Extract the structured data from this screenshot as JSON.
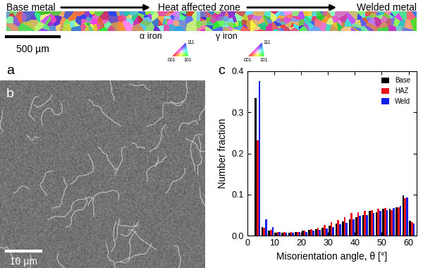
{
  "chart_data": {
    "type": "bar",
    "x_label": "Misorientation angle, θ [°]",
    "y_label": "Number fraction",
    "x": [
      3.75,
      6.25,
      8.75,
      11.25,
      13.75,
      16.25,
      18.75,
      21.25,
      23.75,
      26.25,
      28.75,
      31.25,
      33.75,
      36.25,
      38.75,
      41.25,
      43.75,
      46.25,
      48.75,
      51.25,
      53.75,
      56.25,
      58.75,
      61.25
    ],
    "series": [
      {
        "name": "Base",
        "color": "#000000",
        "values": [
          0.335,
          0.022,
          0.012,
          0.008,
          0.008,
          0.008,
          0.01,
          0.012,
          0.014,
          0.016,
          0.02,
          0.025,
          0.03,
          0.035,
          0.04,
          0.045,
          0.05,
          0.06,
          0.058,
          0.065,
          0.065,
          0.07,
          0.098,
          0.036
        ]
      },
      {
        "name": "HAZ",
        "color": "#e8141b",
        "values": [
          0.232,
          0.02,
          0.015,
          0.01,
          0.01,
          0.01,
          0.01,
          0.012,
          0.016,
          0.02,
          0.026,
          0.033,
          0.038,
          0.045,
          0.055,
          0.058,
          0.06,
          0.062,
          0.065,
          0.068,
          0.062,
          0.07,
          0.092,
          0.033
        ]
      },
      {
        "name": "Weld",
        "color": "#1020e8",
        "values": [
          0.375,
          0.04,
          0.022,
          0.01,
          0.008,
          0.008,
          0.009,
          0.01,
          0.012,
          0.015,
          0.018,
          0.022,
          0.028,
          0.032,
          0.04,
          0.048,
          0.05,
          0.055,
          0.06,
          0.062,
          0.068,
          0.072,
          0.093,
          0.03
        ]
      }
    ],
    "xlim": [
      0,
      63
    ],
    "xticks": [
      0,
      10,
      20,
      30,
      40,
      50,
      60
    ],
    "ylim": [
      0,
      0.4
    ],
    "yticks": [
      {
        "value": 0,
        "label": "0.0"
      },
      0.1,
      0.2,
      0.3,
      0.4
    ],
    "legend": "upper right",
    "grid": false
  },
  "figure": {
    "panel_labels": [
      "a",
      "b",
      "c"
    ],
    "ebsd_map": {
      "regions": [
        "Base metal",
        "Heat affected zone",
        "Welded metal"
      ],
      "scale_bar": "500 µm",
      "color_keys": [
        {
          "phase": "α iron",
          "corners": [
            "001",
            "101",
            "111"
          ]
        },
        {
          "phase": "γ iron",
          "corners": [
            "001",
            "101",
            "111"
          ]
        }
      ]
    },
    "sem_image": {
      "scale_bar": "10 µm"
    }
  }
}
